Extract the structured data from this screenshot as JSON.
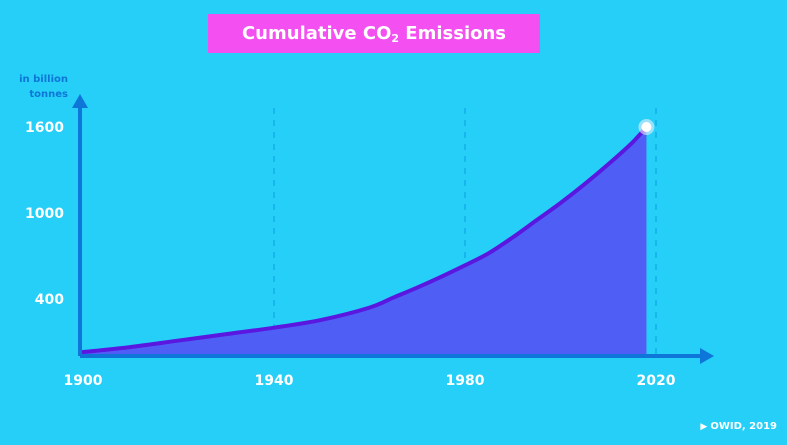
{
  "title_main": "Cumulative CO",
  "title_sub": "2",
  "title_end": " Emissions",
  "unit_line1": "in billion",
  "unit_line2": "tonnes",
  "credit": "OWID, 2019",
  "colors": {
    "background": "#25cff8",
    "title_box": "#f44ff0",
    "axis": "#0d76d8",
    "line": "#5a17e0",
    "area": "#4f5ff6"
  },
  "chart_data": {
    "type": "area",
    "title": "Cumulative CO₂ Emissions",
    "ylabel": "in billion tonnes",
    "xlabel": "",
    "x_ticks": [
      1900,
      1940,
      1980,
      2020
    ],
    "y_ticks": [
      400,
      1000,
      1600
    ],
    "xlim": [
      1900,
      2030
    ],
    "ylim": [
      0,
      1750
    ],
    "grid": "dashed vertical lines at 1940, 1980, 2020",
    "series": [
      {
        "x": [
          1900,
          1910,
          1920,
          1930,
          1940,
          1950,
          1960,
          1965,
          1970,
          1975,
          1980,
          1985,
          1990,
          1995,
          2000,
          2005,
          2010,
          2015,
          2018
        ],
        "values": [
          30,
          65,
          110,
          155,
          200,
          255,
          340,
          410,
          480,
          555,
          635,
          720,
          830,
          950,
          1070,
          1200,
          1340,
          1490,
          1600
        ]
      }
    ],
    "highlight_point": {
      "x": 2018,
      "y": 1600
    }
  }
}
